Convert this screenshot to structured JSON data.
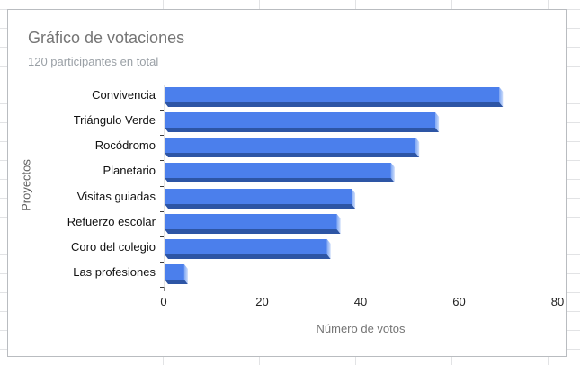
{
  "chart_data": {
    "type": "bar",
    "orientation": "horizontal",
    "title": "Gráfico de votaciones",
    "subtitle": "120 participantes en total",
    "xlabel": "Número de votos",
    "ylabel": "Proyectos",
    "categories": [
      "Convivencia",
      "Triángulo Verde",
      "Rocódromo",
      "Planetario",
      "Visitas guiadas",
      "Refuerzo escolar",
      "Coro del colegio",
      "Las profesiones"
    ],
    "values": [
      68,
      55,
      51,
      46,
      38,
      35,
      33,
      4
    ],
    "xlim": [
      0,
      80
    ],
    "xticks": [
      0,
      20,
      40,
      60,
      80
    ],
    "grid": "vertical",
    "legend": "none",
    "colors": {
      "bar_face": "#4b7fec",
      "bar_bottom_shade": "#2d55a5",
      "bar_side_light_start": "#7fa7f3",
      "bar_side_light_end": "#cfdefb",
      "gridline": "#e3e3e3",
      "title_text": "#757575",
      "subtitle_text": "#9aa0a6"
    }
  }
}
